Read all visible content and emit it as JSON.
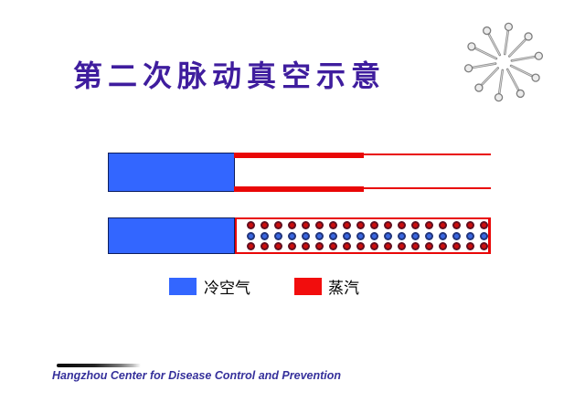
{
  "title": "第二次脉动真空示意",
  "colors": {
    "title": "#3F1D9E",
    "cold_air_blue": "#3366FF",
    "steam_red": "#E90707",
    "footer_text": "#35309B"
  },
  "decoration": {
    "icon": "pin-starburst"
  },
  "diagram": {
    "tube_top": {
      "plug_color": "#3366FF",
      "wall_color": "#E90707"
    },
    "tube_bottom": {
      "plug_color": "#3366FF",
      "border_color": "#E90707",
      "dot_rows": [
        {
          "name": "steam-dot",
          "color": "#CC0E0E",
          "count": 18
        },
        {
          "name": "cold-air-dot",
          "color": "#3A67E0",
          "count": 18
        },
        {
          "name": "steam-dot",
          "color": "#CC0E0E",
          "count": 18
        }
      ]
    }
  },
  "legend": {
    "items": [
      {
        "label": "冷空气",
        "color": "#3366FF"
      },
      {
        "label": "蒸汽",
        "color": "#F20D0D"
      }
    ]
  },
  "footer": {
    "org_en": "Hangzhou Center for Disease Control and Prevention"
  }
}
